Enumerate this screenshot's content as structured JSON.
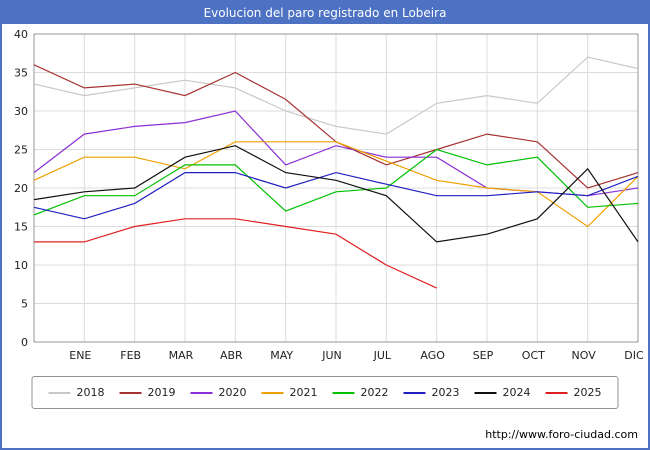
{
  "footer": {
    "url": "http://www.foro-ciudad.com"
  },
  "chart_data": {
    "type": "line",
    "title": "Evolucion del paro registrado en Lobeira",
    "categories": [
      "ENE",
      "FEB",
      "MAR",
      "ABR",
      "MAY",
      "JUN",
      "JUL",
      "AGO",
      "SEP",
      "OCT",
      "NOV",
      "DIC"
    ],
    "ylim": [
      0,
      40
    ],
    "yticks": [
      0,
      5,
      10,
      15,
      20,
      25,
      30,
      35,
      40
    ],
    "grid": true,
    "legend_position": "bottom",
    "axis_note": "first value of each series sits on the left axis, following values align with the month gridlines",
    "series": [
      {
        "name": "2018",
        "color": "#c8c8c8",
        "values": [
          33.5,
          32,
          33,
          34,
          33,
          30,
          28,
          27,
          31,
          32,
          31,
          37,
          35.5
        ]
      },
      {
        "name": "2019",
        "color": "#a83232",
        "values": [
          36,
          33,
          33.5,
          32,
          35,
          31.5,
          26,
          23,
          25,
          27,
          26,
          20,
          22
        ]
      },
      {
        "name": "2020",
        "color": "#8b2fd6",
        "values": [
          22,
          27,
          28,
          28.5,
          30,
          23,
          25.5,
          24,
          24,
          20,
          19.5,
          19,
          20
        ]
      },
      {
        "name": "2021",
        "color": "#eea100",
        "values": [
          21,
          24,
          24,
          22.5,
          26,
          26,
          26,
          23.5,
          21,
          20,
          19.5,
          15,
          21.5
        ]
      },
      {
        "name": "2022",
        "color": "#00c000",
        "values": [
          16.5,
          19,
          19,
          23,
          23,
          17,
          19.5,
          20,
          25,
          23,
          24,
          17.5,
          18
        ]
      },
      {
        "name": "2023",
        "color": "#2020c0",
        "values": [
          17.5,
          16,
          18,
          22,
          22,
          20,
          22,
          20.5,
          19,
          19,
          19.5,
          19,
          21.5
        ]
      },
      {
        "name": "2024",
        "color": "#101010",
        "values": [
          18.5,
          19.5,
          20,
          24,
          25.5,
          22,
          21,
          19,
          13,
          14,
          16,
          22.5,
          13
        ]
      },
      {
        "name": "2025",
        "color": "#e02020",
        "values": [
          13,
          13,
          15,
          16,
          16,
          15,
          14,
          10,
          7
        ]
      }
    ]
  }
}
